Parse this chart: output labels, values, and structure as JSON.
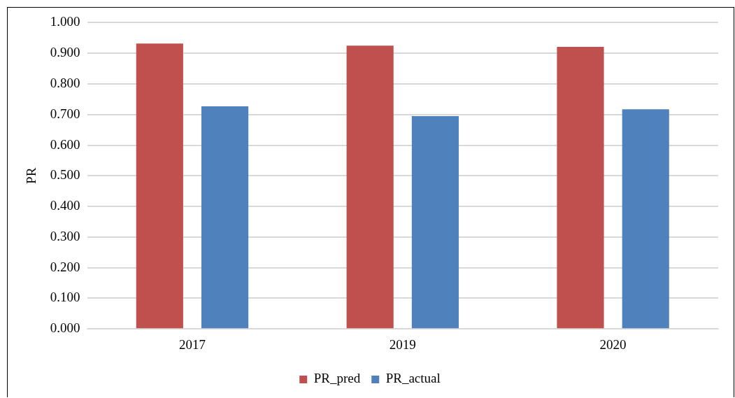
{
  "chart_data": {
    "type": "bar",
    "ylabel": "PR",
    "categories": [
      "2017",
      "2019",
      "2020"
    ],
    "series": [
      {
        "name": "PR_pred",
        "color": "#c0504d",
        "values": [
          0.932,
          0.925,
          0.921
        ]
      },
      {
        "name": "PR_actual",
        "color": "#4f81bd",
        "values": [
          0.727,
          0.695,
          0.717
        ]
      }
    ],
    "ylim": [
      0,
      1
    ],
    "yticks": [
      {
        "value": 0,
        "label": "0.000"
      },
      {
        "value": 0.1,
        "label": "0.100"
      },
      {
        "value": 0.2,
        "label": "0.200"
      },
      {
        "value": 0.3,
        "label": "0.300"
      },
      {
        "value": 0.4,
        "label": "0.400"
      },
      {
        "value": 0.5,
        "label": "0.500"
      },
      {
        "value": 0.6,
        "label": "0.600"
      },
      {
        "value": 0.7,
        "label": "0.700"
      },
      {
        "value": 0.8,
        "label": "0.800"
      },
      {
        "value": 0.9,
        "label": "0.900"
      },
      {
        "value": 1,
        "label": "1.000"
      }
    ],
    "grid": "y",
    "legend": "bottom"
  }
}
